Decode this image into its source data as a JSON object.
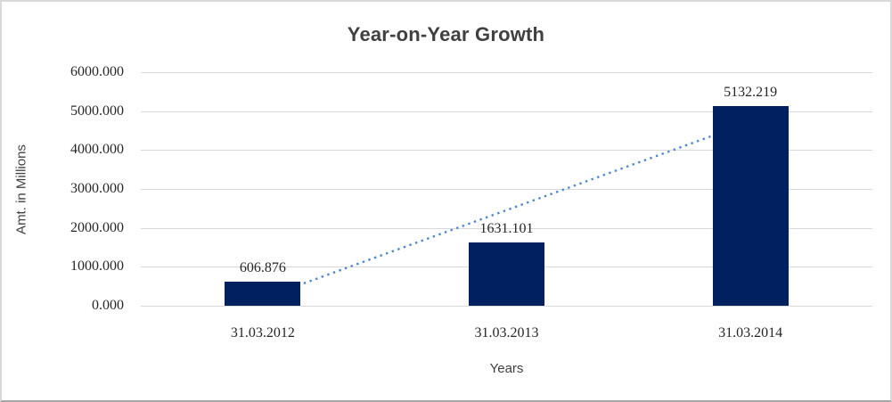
{
  "chart_data": {
    "type": "bar",
    "title": "Year-on-Year Growth",
    "xlabel": "Years",
    "ylabel": "Amt. in Millions",
    "categories": [
      "31.03.2012",
      "31.03.2013",
      "31.03.2014"
    ],
    "values": [
      606.876,
      1631.101,
      5132.219
    ],
    "data_labels": [
      "606.876",
      "1631.101",
      "5132.219"
    ],
    "ylim": [
      0,
      6000
    ],
    "ytick_interval": 1000,
    "ytick_labels": [
      "0.000",
      "1000.000",
      "2000.000",
      "3000.000",
      "4000.000",
      "5000.000",
      "6000.000"
    ],
    "grid": true,
    "legend_position": "none",
    "trendline": {
      "type": "linear",
      "style": "dotted",
      "fit_values_at_categories": [
        194.06,
        2456.73,
        4719.4
      ]
    },
    "colors": {
      "bar": "#002060",
      "trendline": "#4e87ce",
      "gridline": "#d9d9d9",
      "title_text": "#404040",
      "axis_title_text": "#404040",
      "tick_text": "#262626",
      "background": "#ffffff",
      "frame_border": "#d9d9d9"
    }
  }
}
